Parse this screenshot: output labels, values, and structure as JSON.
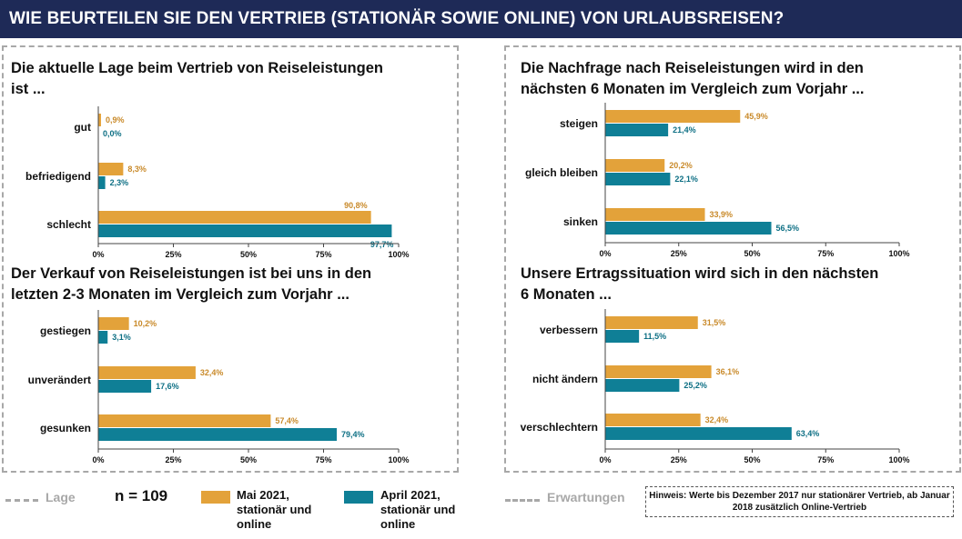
{
  "header": {
    "title": "WIE BEURTEILEN SIE DEN VERTRIEB (STATIONÄR SOWIE ONLINE) VON URLAUBSREISEN?"
  },
  "colors": {
    "mai": "#e3a23a",
    "april": "#0f7f96",
    "header_bg": "#1e2a57",
    "mai_label": "#c98a2a",
    "april_label": "#0d6f84"
  },
  "legend": {
    "lage": "Lage",
    "erwartungen": "Erwartungen",
    "n": "n = 109",
    "series_mai": "Mai 2021,\nstationär und\nonline",
    "series_april": "April 2021,\nstationär und\nonline",
    "note": "Hinweis: Werte bis Dezember 2017 nur stationärer Vertrieb, ab Januar 2018 zusätzlich Online-Vertrieb"
  },
  "chart_data": [
    {
      "type": "bar",
      "orientation": "horizontal",
      "title_lines": [
        "Die aktuelle Lage beim Vertrieb von Reiseleistungen",
        "ist ..."
      ],
      "categories": [
        "gut",
        "befriedigend",
        "schlecht"
      ],
      "series": [
        {
          "name": "Mai 2021, stationär und online",
          "values": [
            0.9,
            8.3,
            90.8
          ],
          "labels": [
            "0,9%",
            "8,3%",
            "90,8%"
          ]
        },
        {
          "name": "April 2021, stationär und online",
          "values": [
            0.0,
            2.3,
            97.7
          ],
          "labels": [
            "0,0%",
            "2,3%",
            "97,7%"
          ]
        }
      ],
      "xlim": [
        0,
        100
      ],
      "ticks": [
        "0%",
        "25%",
        "50%",
        "75%",
        "100%"
      ]
    },
    {
      "type": "bar",
      "orientation": "horizontal",
      "title_lines": [
        "Die Nachfrage nach Reiseleistungen wird in den",
        "nächsten 6 Monaten im Vergleich zum Vorjahr ..."
      ],
      "categories": [
        "steigen",
        "gleich bleiben",
        "sinken"
      ],
      "series": [
        {
          "name": "Mai 2021, stationär und online",
          "values": [
            45.9,
            20.2,
            33.9
          ],
          "labels": [
            "45,9%",
            "20,2%",
            "33,9%"
          ]
        },
        {
          "name": "April 2021, stationär und online",
          "values": [
            21.4,
            22.1,
            56.5
          ],
          "labels": [
            "21,4%",
            "22,1%",
            "56,5%"
          ]
        }
      ],
      "xlim": [
        0,
        100
      ],
      "ticks": [
        "0%",
        "25%",
        "50%",
        "75%",
        "100%"
      ]
    },
    {
      "type": "bar",
      "orientation": "horizontal",
      "title_lines": [
        "Der Verkauf von Reiseleistungen ist bei uns in den",
        "letzten 2-3 Monaten im Vergleich zum Vorjahr ..."
      ],
      "categories": [
        "gestiegen",
        "unverändert",
        "gesunken"
      ],
      "series": [
        {
          "name": "Mai 2021, stationär und online",
          "values": [
            10.2,
            32.4,
            57.4
          ],
          "labels": [
            "10,2%",
            "32,4%",
            "57,4%"
          ]
        },
        {
          "name": "April 2021, stationär und online",
          "values": [
            3.1,
            17.6,
            79.4
          ],
          "labels": [
            "3,1%",
            "17,6%",
            "79,4%"
          ]
        }
      ],
      "xlim": [
        0,
        100
      ],
      "ticks": [
        "0%",
        "25%",
        "50%",
        "75%",
        "100%"
      ]
    },
    {
      "type": "bar",
      "orientation": "horizontal",
      "title_lines": [
        "Unsere Ertragssituation wird sich in den nächsten",
        "6 Monaten ..."
      ],
      "categories": [
        "verbessern",
        "nicht ändern",
        "verschlechtern"
      ],
      "series": [
        {
          "name": "Mai 2021, stationär und online",
          "values": [
            31.5,
            36.1,
            32.4
          ],
          "labels": [
            "31,5%",
            "36,1%",
            "32,4%"
          ]
        },
        {
          "name": "April 2021, stationär und online",
          "values": [
            11.5,
            25.2,
            63.4
          ],
          "labels": [
            "11,5%",
            "25,2%",
            "63,4%"
          ]
        }
      ],
      "xlim": [
        0,
        100
      ],
      "ticks": [
        "0%",
        "25%",
        "50%",
        "75%",
        "100%"
      ]
    }
  ]
}
